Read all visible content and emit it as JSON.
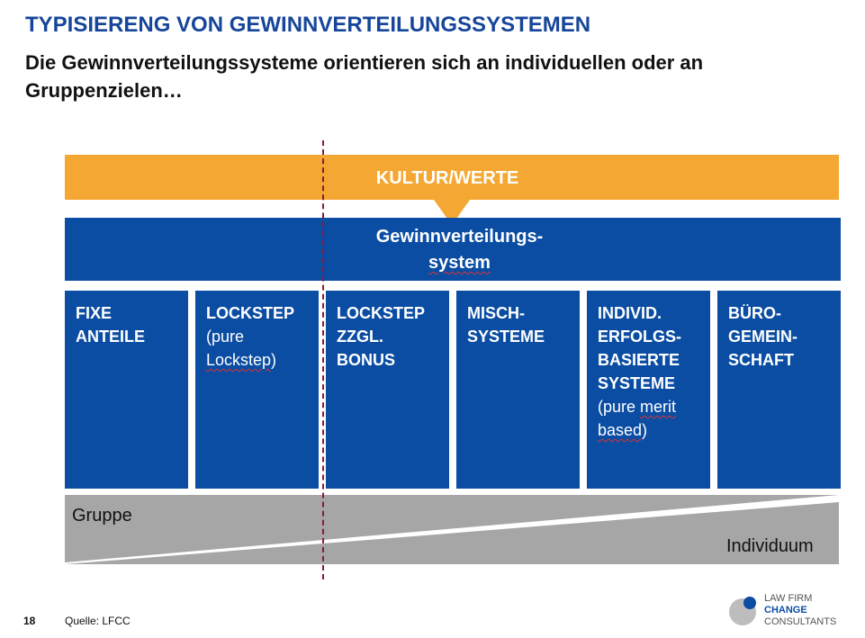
{
  "header": {
    "title": "TYPISIERENG VON GEWINNVERTEILUNGSSYSTEMEN",
    "subtitle": "Die Gewinnverteilungssysteme orientieren sich an individuellen oder an Gruppenzielen…"
  },
  "diagram": {
    "culture_bar": "KULTUR/WERTE",
    "system_line1": "Gewinnverteilungs-",
    "system_line2": "system",
    "boxes": [
      {
        "l1": "FIXE",
        "l2": "ANTEILE"
      },
      {
        "l1": "LOCKSTEP",
        "n1": "(pure",
        "n2a": "Lockstep",
        "n2b": ")"
      },
      {
        "l1": "LOCKSTEP",
        "l2": "ZZGL.",
        "l3": "BONUS"
      },
      {
        "l1": "MISCH-",
        "l2": "SYSTEME"
      },
      {
        "l1": "INDIVID.",
        "l2": "ERFOLGS-",
        "l3": "BASIERTE",
        "l4": "SYSTEME",
        "n1a": "(pure ",
        "n1b": "merit",
        "n2a": "based",
        "n2b": ")"
      },
      {
        "l1": "BÜRO-",
        "l2": "GEMEIN-",
        "l3": "SCHAFT"
      }
    ],
    "left_label": "Gruppe",
    "right_label": "Individuum"
  },
  "footer": {
    "page_number": "18",
    "source": "Quelle: LFCC",
    "logo_line1": "LAW FIRM",
    "logo_line2": "CHANGE",
    "logo_line3": "CONSULTANTS"
  },
  "colors": {
    "title_blue": "#16459A",
    "box_blue": "#0B4DA2",
    "orange": "#F4A833",
    "gray": "#A6A6A6",
    "divider": "#8B1A3A"
  }
}
